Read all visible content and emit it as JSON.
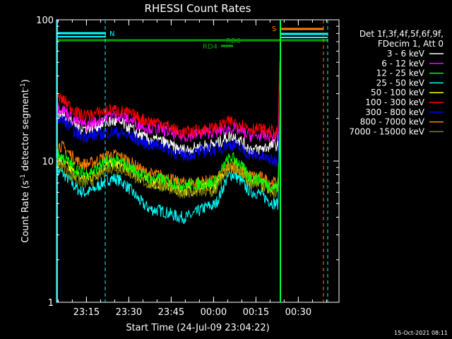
{
  "chart_data": {
    "type": "line",
    "title": "RHESSI Count Rates",
    "xlabel": "Start Time (24-Jul-09 23:04:22)",
    "ylabel_main": "Count Rate (s",
    "ylabel_sup1": "-1",
    "ylabel_mid": " detector segment",
    "ylabel_sup2": "-1",
    "ylabel_end": ")",
    "y_scale": "log",
    "ylim": [
      1,
      100
    ],
    "y_ticks": [
      {
        "value": 1,
        "label": "1"
      },
      {
        "value": 10,
        "label": "10"
      },
      {
        "value": 100,
        "label": "100"
      }
    ],
    "xlim_minutes": [
      0,
      100
    ],
    "x_ticks": [
      {
        "minute": 10.6,
        "label": "23:15"
      },
      {
        "minute": 25.6,
        "label": "23:30"
      },
      {
        "minute": 40.6,
        "label": "23:45"
      },
      {
        "minute": 55.6,
        "label": "00:00"
      },
      {
        "minute": 70.6,
        "label": "00:15"
      },
      {
        "minute": 85.6,
        "label": "00:30"
      }
    ],
    "legend_header": [
      "Det 1f,3f,4f,5f,6f,9f,",
      "FDecim 1, Att 0"
    ],
    "series": [
      {
        "name": "3 - 6 keV",
        "color": "#ffffff",
        "values": [
          22,
          17,
          19,
          14,
          12,
          13,
          15,
          12,
          13
        ]
      },
      {
        "name": "6 - 12 keV",
        "color": "#ff00ff",
        "values": [
          24,
          18,
          21,
          17,
          15,
          16,
          17,
          15,
          15
        ]
      },
      {
        "name": "12 - 25 keV",
        "color": "#00ff00",
        "values": [
          11,
          8.2,
          10,
          7.5,
          6.8,
          7.0,
          10.5,
          7.5,
          6.5
        ]
      },
      {
        "name": "25 - 50 keV",
        "color": "#00ffff",
        "values": [
          8.5,
          6.0,
          7.5,
          4.5,
          4.0,
          4.8,
          8.0,
          6.0,
          5.0
        ]
      },
      {
        "name": "50 - 100 keV",
        "color": "#ffff00",
        "values": [
          10,
          7.5,
          9.5,
          7.0,
          6.2,
          6.5,
          9.5,
          7.2,
          6.3
        ]
      },
      {
        "name": "100 - 300 keV",
        "color": "#ff0000",
        "values": [
          28,
          21,
          23,
          19,
          16,
          17,
          19,
          17,
          16
        ]
      },
      {
        "name": "300 - 800 keV",
        "color": "#0000ff",
        "values": [
          20,
          15,
          16,
          13,
          11,
          12,
          13,
          11,
          10
        ]
      },
      {
        "name": "800 - 7000 keV",
        "color": "#ff8000",
        "values": [
          13,
          9.5,
          11,
          8.0,
          7.0,
          7.2,
          9.0,
          7.8,
          7.0
        ]
      },
      {
        "name": "7000 - 15000 keV",
        "color": "#808000",
        "values": [
          9.5,
          7.0,
          9.0,
          6.8,
          6.0,
          6.0,
          9.0,
          7.0,
          6.0
        ]
      }
    ],
    "series_x_minutes": [
      0,
      10,
      20,
      35,
      45,
      55,
      62,
      70,
      78
    ],
    "annotations": [
      {
        "label": "N",
        "color": "#00ffff"
      },
      {
        "label": "S",
        "color": "#ff8000"
      },
      {
        "label": "RD0",
        "color": "#00a000"
      },
      {
        "label": "RD4",
        "color": "#00a000"
      }
    ],
    "timestamp": "15-Oct-2021 08:11"
  }
}
